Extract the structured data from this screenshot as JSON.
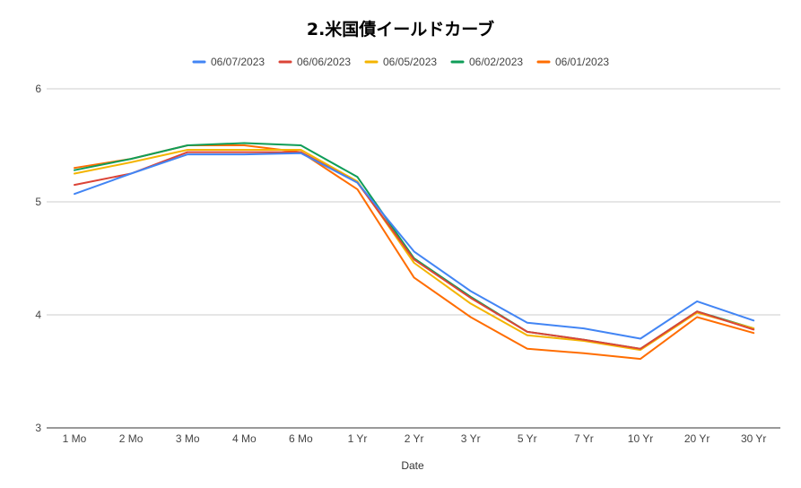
{
  "chart_data": {
    "type": "line",
    "title": "2.米国債イールドカーブ",
    "xlabel": "Date",
    "ylabel": "",
    "ylim": [
      3,
      6
    ],
    "yticks": [
      3,
      4,
      5,
      6
    ],
    "grid": true,
    "legend_position": "top",
    "categories": [
      "1 Mo",
      "2 Mo",
      "3 Mo",
      "4 Mo",
      "6 Mo",
      "1 Yr",
      "2 Yr",
      "3 Yr",
      "5 Yr",
      "7 Yr",
      "10 Yr",
      "20 Yr",
      "30 Yr"
    ],
    "series": [
      {
        "name": "06/07/2023",
        "color": "#4285f4",
        "values": [
          5.07,
          5.25,
          5.42,
          5.42,
          5.43,
          5.17,
          4.56,
          4.21,
          3.93,
          3.88,
          3.79,
          4.12,
          3.95
        ]
      },
      {
        "name": "06/06/2023",
        "color": "#db4437",
        "values": [
          5.15,
          5.25,
          5.44,
          5.44,
          5.44,
          5.17,
          4.49,
          4.15,
          3.85,
          3.78,
          3.7,
          4.03,
          3.87
        ]
      },
      {
        "name": "06/05/2023",
        "color": "#f4b400",
        "values": [
          5.25,
          5.35,
          5.46,
          5.46,
          5.46,
          5.18,
          4.46,
          4.1,
          3.82,
          3.77,
          3.69,
          4.02,
          3.88
        ]
      },
      {
        "name": "06/02/2023",
        "color": "#0f9d58",
        "values": [
          5.28,
          5.38,
          5.5,
          5.52,
          5.5,
          5.22,
          4.5,
          4.16,
          3.85,
          3.78,
          3.7,
          4.03,
          3.88
        ]
      },
      {
        "name": "06/01/2023",
        "color": "#ff6d00",
        "values": [
          5.3,
          5.38,
          5.5,
          5.5,
          5.44,
          5.11,
          4.33,
          3.98,
          3.7,
          3.66,
          3.61,
          3.98,
          3.84
        ]
      }
    ]
  }
}
